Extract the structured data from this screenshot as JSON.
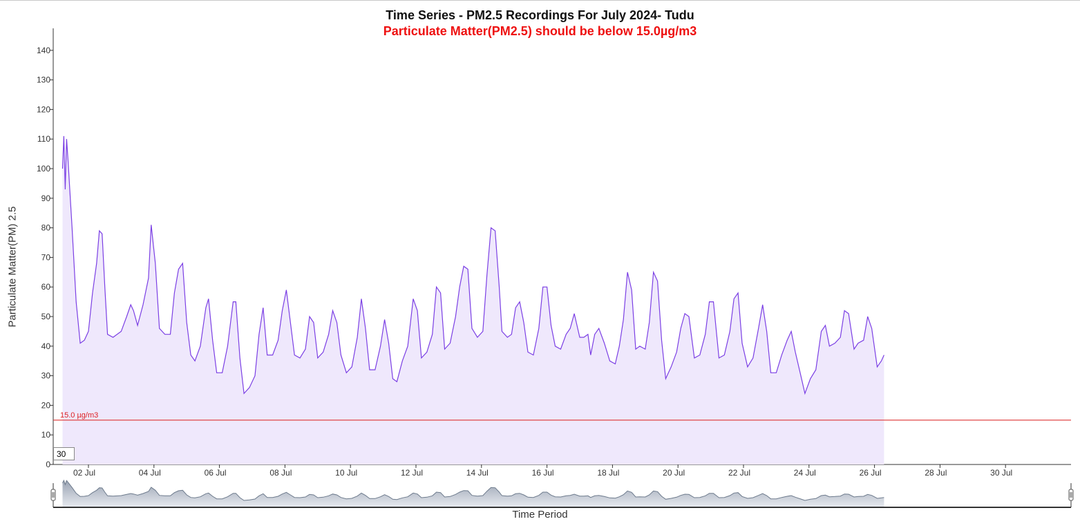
{
  "chart_data": {
    "type": "area",
    "title": "Time Series - PM2.5 Recordings For July 2024- Tudu",
    "subtitle": "Particulate Matter(PM2.5) should be below 15.0µg/m3",
    "xlabel": "Time Period",
    "ylabel": "Particulate Matter(PM) 2.5",
    "xlim": [
      "2024-07-01T05:00",
      "2024-07-31T23:00"
    ],
    "ylim": [
      0,
      150
    ],
    "yticks": [
      0,
      10,
      20,
      30,
      40,
      50,
      60,
      70,
      80,
      90,
      100,
      110,
      120,
      130,
      140
    ],
    "xticks": [
      {
        "date": "2024-07-02",
        "label": "02 Jul"
      },
      {
        "date": "2024-07-04",
        "label": "04 Jul"
      },
      {
        "date": "2024-07-06",
        "label": "06 Jul"
      },
      {
        "date": "2024-07-08",
        "label": "08 Jul"
      },
      {
        "date": "2024-07-10",
        "label": "10 Jul"
      },
      {
        "date": "2024-07-12",
        "label": "12 Jul"
      },
      {
        "date": "2024-07-14",
        "label": "14 Jul"
      },
      {
        "date": "2024-07-16",
        "label": "16 Jul"
      },
      {
        "date": "2024-07-18",
        "label": "18 Jul"
      },
      {
        "date": "2024-07-20",
        "label": "20 Jul"
      },
      {
        "date": "2024-07-22",
        "label": "22 Jul"
      },
      {
        "date": "2024-07-24",
        "label": "24 Jul"
      },
      {
        "date": "2024-07-26",
        "label": "26 Jul"
      },
      {
        "date": "2024-07-28",
        "label": "28 Jul"
      },
      {
        "date": "2024-07-30",
        "label": "30 Jul"
      }
    ],
    "threshold": {
      "value": 15.0,
      "label": "15.0 µg/m3",
      "color": "#dd3333"
    },
    "line_color": "#7b3fe4",
    "fill_color": "#efe8fc",
    "grid": false,
    "points": [
      [
        "2024-07-01T05:00",
        100
      ],
      [
        "2024-07-01T06:00",
        111
      ],
      [
        "2024-07-01T07:00",
        93
      ],
      [
        "2024-07-01T08:00",
        110
      ],
      [
        "2024-07-01T09:00",
        103
      ],
      [
        "2024-07-01T12:00",
        80
      ],
      [
        "2024-07-01T15:00",
        55
      ],
      [
        "2024-07-01T18:00",
        41
      ],
      [
        "2024-07-01T21:00",
        42
      ],
      [
        "2024-07-02T00:00",
        45
      ],
      [
        "2024-07-02T03:00",
        58
      ],
      [
        "2024-07-02T06:00",
        68
      ],
      [
        "2024-07-02T08:00",
        79
      ],
      [
        "2024-07-02T10:00",
        78
      ],
      [
        "2024-07-02T12:00",
        60
      ],
      [
        "2024-07-02T14:00",
        44
      ],
      [
        "2024-07-02T18:00",
        43
      ],
      [
        "2024-07-03T00:00",
        45
      ],
      [
        "2024-07-03T04:00",
        50
      ],
      [
        "2024-07-03T07:00",
        54
      ],
      [
        "2024-07-03T09:00",
        52
      ],
      [
        "2024-07-03T12:00",
        47
      ],
      [
        "2024-07-03T16:00",
        54
      ],
      [
        "2024-07-03T20:00",
        63
      ],
      [
        "2024-07-03T22:00",
        81
      ],
      [
        "2024-07-04T01:00",
        68
      ],
      [
        "2024-07-04T04:00",
        46
      ],
      [
        "2024-07-04T08:00",
        44
      ],
      [
        "2024-07-04T12:00",
        44
      ],
      [
        "2024-07-04T15:00",
        58
      ],
      [
        "2024-07-04T18:00",
        66
      ],
      [
        "2024-07-04T21:00",
        68
      ],
      [
        "2024-07-05T00:00",
        48
      ],
      [
        "2024-07-05T03:00",
        37
      ],
      [
        "2024-07-05T06:00",
        35
      ],
      [
        "2024-07-05T10:00",
        40
      ],
      [
        "2024-07-05T14:00",
        53
      ],
      [
        "2024-07-05T16:00",
        56
      ],
      [
        "2024-07-05T19:00",
        42
      ],
      [
        "2024-07-05T22:00",
        31
      ],
      [
        "2024-07-06T02:00",
        31
      ],
      [
        "2024-07-06T06:00",
        40
      ],
      [
        "2024-07-06T10:00",
        55
      ],
      [
        "2024-07-06T12:00",
        55
      ],
      [
        "2024-07-06T15:00",
        36
      ],
      [
        "2024-07-06T18:00",
        24
      ],
      [
        "2024-07-06T22:00",
        26
      ],
      [
        "2024-07-07T02:00",
        30
      ],
      [
        "2024-07-07T05:00",
        44
      ],
      [
        "2024-07-07T08:00",
        53
      ],
      [
        "2024-07-07T11:00",
        37
      ],
      [
        "2024-07-07T15:00",
        37
      ],
      [
        "2024-07-07T19:00",
        42
      ],
      [
        "2024-07-07T22:00",
        52
      ],
      [
        "2024-07-08T01:00",
        59
      ],
      [
        "2024-07-08T04:00",
        48
      ],
      [
        "2024-07-08T07:00",
        37
      ],
      [
        "2024-07-08T11:00",
        36
      ],
      [
        "2024-07-08T15:00",
        39
      ],
      [
        "2024-07-08T18:00",
        50
      ],
      [
        "2024-07-08T21:00",
        48
      ],
      [
        "2024-07-09T00:00",
        36
      ],
      [
        "2024-07-09T04:00",
        38
      ],
      [
        "2024-07-09T08:00",
        44
      ],
      [
        "2024-07-09T11:00",
        52
      ],
      [
        "2024-07-09T14:00",
        48
      ],
      [
        "2024-07-09T17:00",
        37
      ],
      [
        "2024-07-09T21:00",
        31
      ],
      [
        "2024-07-10T01:00",
        33
      ],
      [
        "2024-07-10T05:00",
        43
      ],
      [
        "2024-07-10T08:00",
        56
      ],
      [
        "2024-07-10T11:00",
        46
      ],
      [
        "2024-07-10T14:00",
        32
      ],
      [
        "2024-07-10T18:00",
        32
      ],
      [
        "2024-07-10T22:00",
        40
      ],
      [
        "2024-07-11T01:00",
        49
      ],
      [
        "2024-07-11T04:00",
        41
      ],
      [
        "2024-07-11T07:00",
        29
      ],
      [
        "2024-07-11T10:00",
        28
      ],
      [
        "2024-07-11T14:00",
        35
      ],
      [
        "2024-07-11T18:00",
        40
      ],
      [
        "2024-07-11T22:00",
        56
      ],
      [
        "2024-07-12T01:00",
        52
      ],
      [
        "2024-07-12T04:00",
        36
      ],
      [
        "2024-07-12T08:00",
        38
      ],
      [
        "2024-07-12T12:00",
        44
      ],
      [
        "2024-07-12T15:00",
        60
      ],
      [
        "2024-07-12T18:00",
        58
      ],
      [
        "2024-07-12T21:00",
        39
      ],
      [
        "2024-07-13T01:00",
        41
      ],
      [
        "2024-07-13T05:00",
        50
      ],
      [
        "2024-07-13T08:00",
        60
      ],
      [
        "2024-07-13T11:00",
        67
      ],
      [
        "2024-07-13T14:00",
        66
      ],
      [
        "2024-07-13T17:00",
        46
      ],
      [
        "2024-07-13T21:00",
        43
      ],
      [
        "2024-07-14T01:00",
        45
      ],
      [
        "2024-07-14T04:00",
        64
      ],
      [
        "2024-07-14T07:00",
        80
      ],
      [
        "2024-07-14T10:00",
        79
      ],
      [
        "2024-07-14T13:00",
        60
      ],
      [
        "2024-07-14T15:00",
        45
      ],
      [
        "2024-07-14T19:00",
        43
      ],
      [
        "2024-07-14T22:00",
        44
      ],
      [
        "2024-07-15T01:00",
        53
      ],
      [
        "2024-07-15T04:00",
        55
      ],
      [
        "2024-07-15T07:00",
        48
      ],
      [
        "2024-07-15T10:00",
        38
      ],
      [
        "2024-07-15T14:00",
        37
      ],
      [
        "2024-07-15T18:00",
        46
      ],
      [
        "2024-07-15T21:00",
        60
      ],
      [
        "2024-07-16T00:00",
        60
      ],
      [
        "2024-07-16T03:00",
        47
      ],
      [
        "2024-07-16T06:00",
        40
      ],
      [
        "2024-07-16T10:00",
        39
      ],
      [
        "2024-07-16T14:00",
        44
      ],
      [
        "2024-07-16T17:00",
        46
      ],
      [
        "2024-07-16T20:00",
        51
      ],
      [
        "2024-07-17T00:00",
        43
      ],
      [
        "2024-07-17T03:00",
        43
      ],
      [
        "2024-07-17T06:00",
        44
      ],
      [
        "2024-07-17T08:00",
        37
      ],
      [
        "2024-07-17T11:00",
        44
      ],
      [
        "2024-07-17T14:00",
        46
      ],
      [
        "2024-07-17T18:00",
        41
      ],
      [
        "2024-07-17T22:00",
        35
      ],
      [
        "2024-07-18T02:00",
        34
      ],
      [
        "2024-07-18T05:00",
        40
      ],
      [
        "2024-07-18T08:00",
        49
      ],
      [
        "2024-07-18T11:00",
        65
      ],
      [
        "2024-07-18T14:00",
        59
      ],
      [
        "2024-07-18T17:00",
        39
      ],
      [
        "2024-07-18T20:00",
        40
      ],
      [
        "2024-07-19T00:00",
        39
      ],
      [
        "2024-07-19T03:00",
        48
      ],
      [
        "2024-07-19T06:00",
        65
      ],
      [
        "2024-07-19T09:00",
        62
      ],
      [
        "2024-07-19T12:00",
        42
      ],
      [
        "2024-07-19T15:00",
        29
      ],
      [
        "2024-07-19T19:00",
        33
      ],
      [
        "2024-07-19T23:00",
        38
      ],
      [
        "2024-07-20T02:00",
        46
      ],
      [
        "2024-07-20T05:00",
        51
      ],
      [
        "2024-07-20T08:00",
        50
      ],
      [
        "2024-07-20T12:00",
        36
      ],
      [
        "2024-07-20T16:00",
        37
      ],
      [
        "2024-07-20T20:00",
        44
      ],
      [
        "2024-07-20T23:00",
        55
      ],
      [
        "2024-07-21T02:00",
        55
      ],
      [
        "2024-07-21T06:00",
        36
      ],
      [
        "2024-07-21T10:00",
        37
      ],
      [
        "2024-07-21T14:00",
        45
      ],
      [
        "2024-07-21T17:00",
        56
      ],
      [
        "2024-07-21T20:00",
        58
      ],
      [
        "2024-07-21T23:00",
        41
      ],
      [
        "2024-07-22T03:00",
        33
      ],
      [
        "2024-07-22T07:00",
        36
      ],
      [
        "2024-07-22T11:00",
        46
      ],
      [
        "2024-07-22T14:00",
        54
      ],
      [
        "2024-07-22T17:00",
        45
      ],
      [
        "2024-07-22T20:00",
        31
      ],
      [
        "2024-07-23T00:00",
        31
      ],
      [
        "2024-07-23T04:00",
        37
      ],
      [
        "2024-07-23T08:00",
        42
      ],
      [
        "2024-07-23T11:00",
        45
      ],
      [
        "2024-07-23T14:00",
        38
      ],
      [
        "2024-07-23T18:00",
        30
      ],
      [
        "2024-07-23T21:00",
        24
      ],
      [
        "2024-07-24T01:00",
        29
      ],
      [
        "2024-07-24T05:00",
        32
      ],
      [
        "2024-07-24T09:00",
        45
      ],
      [
        "2024-07-24T12:00",
        47
      ],
      [
        "2024-07-24T15:00",
        40
      ],
      [
        "2024-07-24T19:00",
        41
      ],
      [
        "2024-07-24T23:00",
        43
      ],
      [
        "2024-07-25T02:00",
        52
      ],
      [
        "2024-07-25T05:00",
        51
      ],
      [
        "2024-07-25T09:00",
        39
      ],
      [
        "2024-07-25T12:00",
        41
      ],
      [
        "2024-07-25T16:00",
        42
      ],
      [
        "2024-07-25T19:00",
        50
      ],
      [
        "2024-07-25T22:00",
        46
      ],
      [
        "2024-07-26T02:00",
        33
      ],
      [
        "2024-07-26T05:00",
        35
      ],
      [
        "2024-07-26T07:00",
        37
      ]
    ]
  }
}
